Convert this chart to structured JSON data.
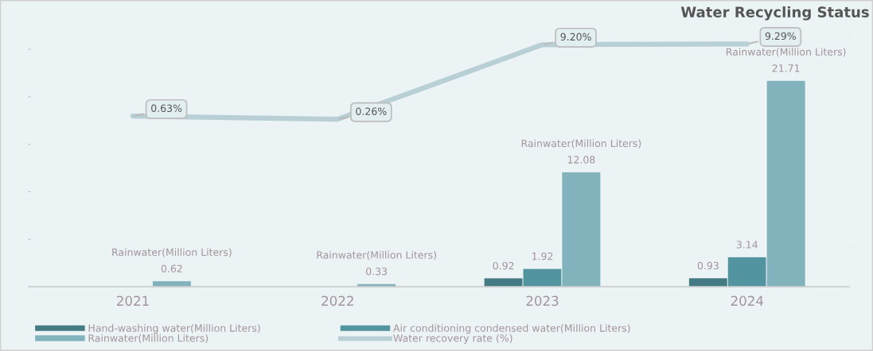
{
  "chart_data": {
    "type": "bar",
    "title": "Water Recycling Status",
    "categories": [
      "2021",
      "2022",
      "2023",
      "2024"
    ],
    "tick_labels": "x",
    "grid": false,
    "legend": "bottom",
    "series": [
      {
        "name": "Hand-washing water(Million Liters)",
        "color": "#437a83",
        "values": [
          null,
          null,
          0.92,
          0.93
        ],
        "value_labels": [
          null,
          null,
          "0.92",
          "0.93"
        ]
      },
      {
        "name": "Air conditioning condensed water(Million Liters)",
        "color": "#5294a0",
        "values": [
          null,
          null,
          1.92,
          3.14
        ],
        "value_labels": [
          null,
          null,
          "1.92",
          "3.14"
        ]
      },
      {
        "name": "Rainwater(Million Liters)",
        "color": "#82b2bc",
        "values": [
          0.62,
          0.33,
          12.08,
          21.71
        ],
        "value_labels": [
          "Rainwater(Million Liters)\n0.62",
          "Rainwater(Million Liters)\n0.33",
          "Rainwater(Million Liters)\n12.08",
          "Rainwater(Million Liters)\n21.71"
        ]
      },
      {
        "name": "Water recovery rate (%)",
        "type": "line",
        "axis": "y2",
        "color": "#b7cfd5",
        "values": [
          0.63,
          0.26,
          9.2,
          9.29
        ],
        "value_labels": [
          "0.63%",
          "0.26%",
          "9.20%",
          "9.29%"
        ]
      }
    ]
  }
}
